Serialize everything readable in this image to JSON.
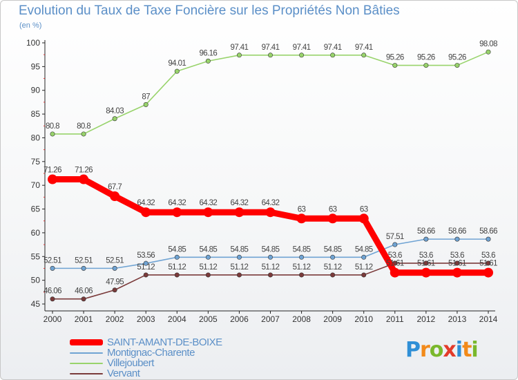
{
  "page": {
    "title": "Evolution du Taux de Taxe Foncière sur les Propriétés Non Bâties",
    "subtitle": "(en %)"
  },
  "logo": {
    "text": "Proxiti",
    "letters": [
      "P",
      "r",
      "o",
      "x",
      "i",
      "t",
      "i"
    ],
    "colors": [
      "#2f8fd6",
      "#f28a1a",
      "#7ab82c",
      "#e33b2a",
      "#2f8fd6",
      "#f28a1a",
      "#7ab82c"
    ]
  },
  "chart_data": {
    "type": "line",
    "title": "Evolution du Taux de Taxe Foncière sur les Propriétés Non Bâties",
    "ylabel": "(en %)",
    "xlabel": "",
    "ylim": [
      45,
      100
    ],
    "yticks": [
      45,
      50,
      55,
      60,
      65,
      70,
      75,
      80,
      85,
      90,
      95,
      100
    ],
    "grid": false,
    "legend_position": "bottom-left",
    "categories": [
      "2000",
      "2001",
      "2002",
      "2003",
      "2004",
      "2005",
      "2006",
      "2007",
      "2008",
      "2009",
      "2010",
      "2011",
      "2012",
      "2013",
      "2014"
    ],
    "series": [
      {
        "name": "SAINT-AMANT-DE-BOIXE",
        "color": "#ff0000",
        "values": [
          71.26,
          71.26,
          67.7,
          64.32,
          64.32,
          64.32,
          64.32,
          64.32,
          63,
          63,
          63,
          51.61,
          51.61,
          51.61,
          51.61
        ],
        "labels": [
          "71.26",
          "71.26",
          "67.7",
          "64.32",
          "64.32",
          "64.32",
          "64.32",
          "64.32",
          "63",
          "63",
          "63",
          "51.61",
          "51.61",
          "51.61",
          "51.61"
        ]
      },
      {
        "name": "Montignac-Charente",
        "color": "#6fa3d3",
        "values": [
          52.51,
          52.51,
          52.51,
          53.56,
          54.85,
          54.85,
          54.85,
          54.85,
          54.85,
          54.85,
          54.85,
          57.51,
          58.66,
          58.66,
          58.66
        ],
        "labels": [
          "52.51",
          "52.51",
          "52.51",
          "53.56",
          "54.85",
          "54.85",
          "54.85",
          "54.85",
          "54.85",
          "54.85",
          "54.85",
          "57.51",
          "58.66",
          "58.66",
          "58.66"
        ]
      },
      {
        "name": "Villejoubert",
        "color": "#98d36b",
        "values": [
          80.8,
          80.8,
          84.03,
          87,
          94.01,
          96.16,
          97.41,
          97.41,
          97.41,
          97.41,
          97.41,
          95.26,
          95.26,
          95.26,
          98.08
        ],
        "labels": [
          "80.8",
          "80.8",
          "84.03",
          "87",
          "94.01",
          "96.16",
          "97.41",
          "97.41",
          "97.41",
          "97.41",
          "97.41",
          "95.26",
          "95.26",
          "95.26",
          "98.08"
        ]
      },
      {
        "name": "Vervant",
        "color": "#7a3a3a",
        "values": [
          46.06,
          46.06,
          47.95,
          51.12,
          51.12,
          51.12,
          51.12,
          51.12,
          51.12,
          51.12,
          51.12,
          53.6,
          53.6,
          53.6,
          53.6
        ],
        "labels": [
          "46.06",
          "46.06",
          "47.95",
          "51.12",
          "51.12",
          "51.12",
          "51.12",
          "51.12",
          "51.12",
          "51.12",
          "51.12",
          "53.6",
          "53.6",
          "53.6",
          "53.6"
        ]
      }
    ]
  }
}
